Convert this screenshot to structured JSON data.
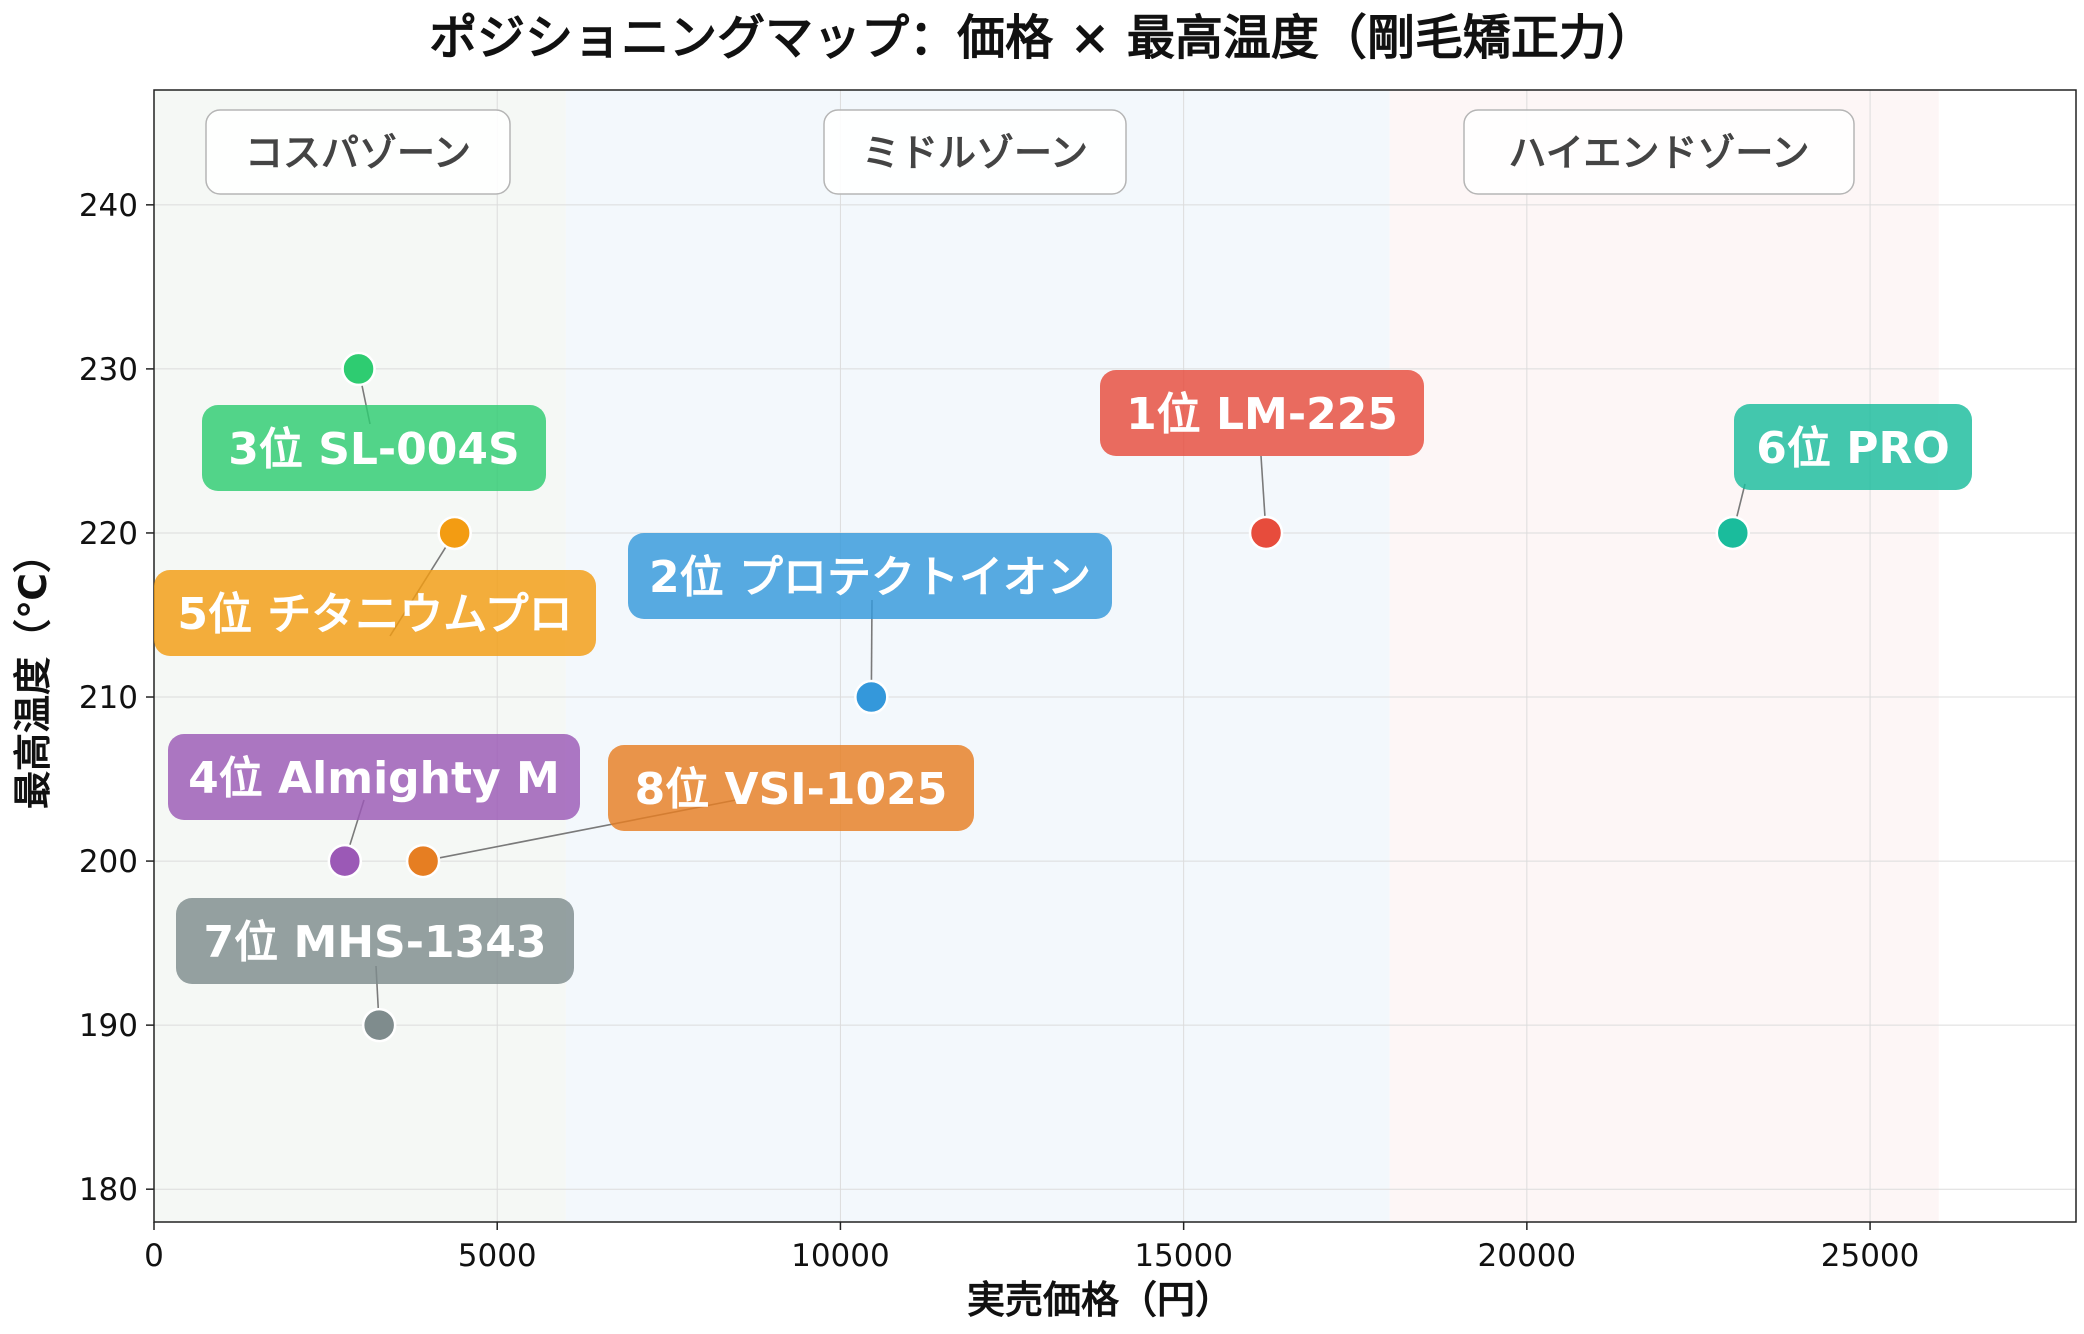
{
  "chart_data": {
    "type": "scatter",
    "title": "ポジショニングマップ：価格 × 最高温度（剛毛矯正力）",
    "xlabel": "実売価格（円）",
    "ylabel": "最高温度（℃）",
    "xlim": [
      0,
      28000
    ],
    "ylim": [
      178,
      247
    ],
    "xticks": [
      "0",
      "5000",
      "10000",
      "15000",
      "20000",
      "25000"
    ],
    "xtick_values": [
      0,
      5000,
      10000,
      15000,
      20000,
      25000
    ],
    "yticks": [
      "180",
      "190",
      "200",
      "210",
      "220",
      "230",
      "240"
    ],
    "ytick_values": [
      180,
      190,
      200,
      210,
      220,
      230,
      240
    ],
    "grid": true,
    "zones": [
      {
        "label": "コスパゾーン",
        "x_range": [
          0,
          6000
        ],
        "color": "#f5f8f5"
      },
      {
        "label": "ミドルゾーン",
        "x_range": [
          6000,
          18000
        ],
        "color": "#f3f8fc"
      },
      {
        "label": "ハイエンドゾーン",
        "x_range": [
          18000,
          26000
        ],
        "color": "#fdf6f6"
      }
    ],
    "points": [
      {
        "label": "1位 LM-225",
        "x": 16200,
        "y": 220,
        "color": "#e74c3c"
      },
      {
        "label": "2位 プロテクトイオン",
        "x": 10450,
        "y": 210,
        "color": "#3498db"
      },
      {
        "label": "3位 SL-004S",
        "x": 2980,
        "y": 230,
        "color": "#2ecc71"
      },
      {
        "label": "4位 Almighty M",
        "x": 2780,
        "y": 200,
        "color": "#9b59b6"
      },
      {
        "label": "5位 チタニウムプロ",
        "x": 4380,
        "y": 220,
        "color": "#f39c12"
      },
      {
        "label": "6位 PRO",
        "x": 23000,
        "y": 220,
        "color": "#1abc9c"
      },
      {
        "label": "7位 MHS-1343",
        "x": 3280,
        "y": 190,
        "color": "#7f8c8d"
      },
      {
        "label": "8位 VSI-1025",
        "x": 3920,
        "y": 200,
        "color": "#e67e22"
      }
    ]
  }
}
